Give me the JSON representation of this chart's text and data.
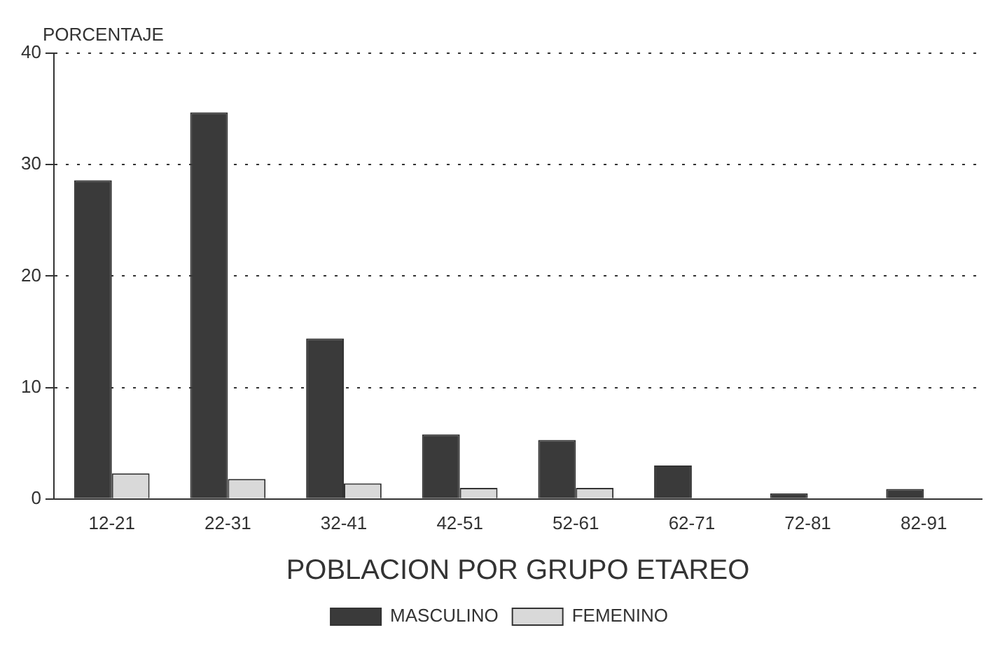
{
  "chart_data": {
    "type": "bar",
    "ylabel": "PORCENTAJE",
    "xlabel": "POBLACION POR GRUPO ETAREO",
    "categories": [
      "12-21",
      "22-31",
      "32-41",
      "42-51",
      "52-61",
      "62-71",
      "72-81",
      "82-91"
    ],
    "series": [
      {
        "name": "MASCULINO",
        "color": "#3a3a3a",
        "values": [
          28.6,
          34.7,
          14.4,
          5.8,
          5.3,
          3.0,
          0.5,
          0.9
        ]
      },
      {
        "name": "FEMENINO",
        "color": "#d9d9d9",
        "values": [
          2.3,
          1.8,
          1.4,
          1.0,
          1.0,
          null,
          null,
          null
        ]
      }
    ],
    "ylim": [
      0,
      40
    ],
    "yticks": [
      0,
      10,
      20,
      30,
      40
    ],
    "grid": "y",
    "line_style": "dotted",
    "legend": "bottom"
  }
}
